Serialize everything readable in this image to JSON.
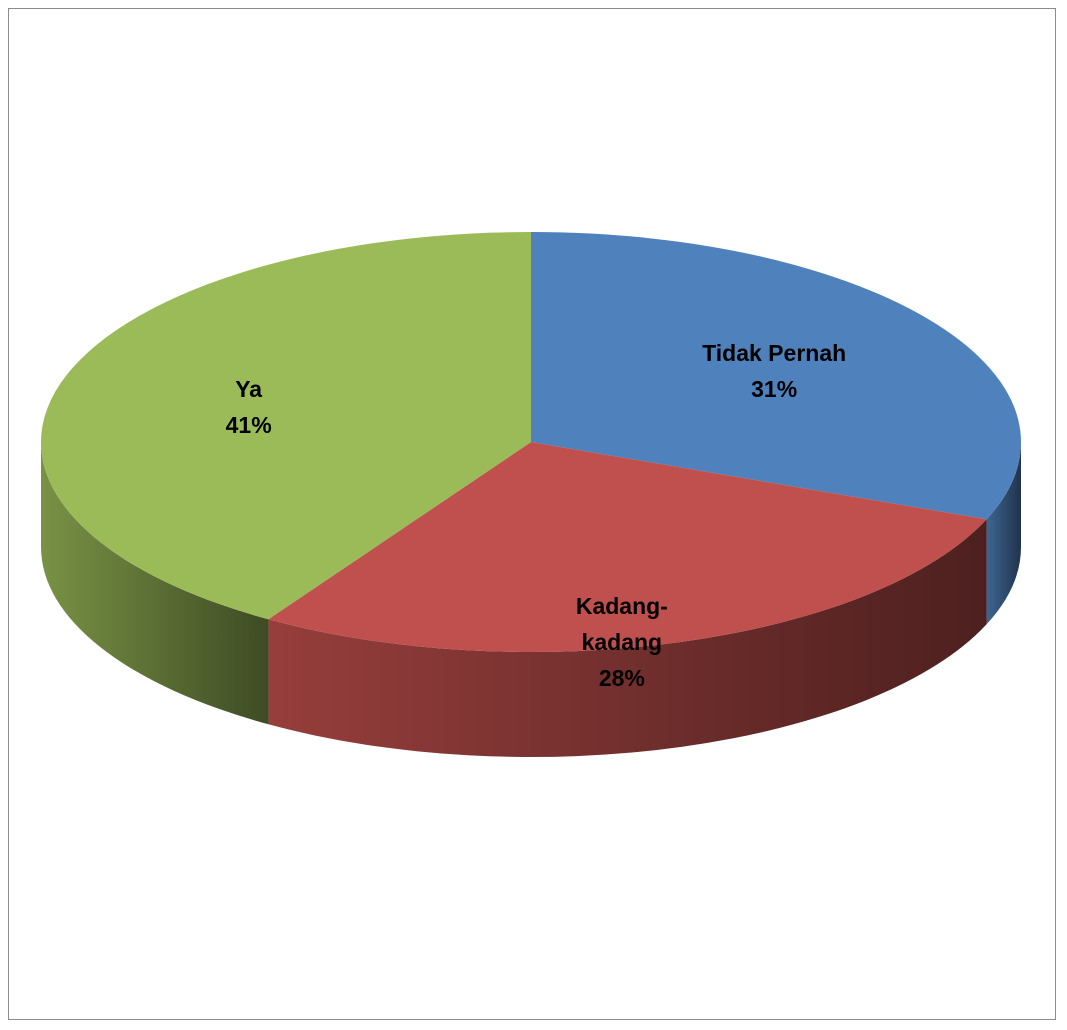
{
  "chart_data": {
    "type": "pie",
    "style": "3d",
    "slices": [
      {
        "label_lines": [
          "Tidak Pernah"
        ],
        "pct_label": "31%",
        "value": 31,
        "color": "#4f81bd"
      },
      {
        "label_lines": [
          "Kadang-",
          "kadang"
        ],
        "pct_label": "28%",
        "value": 28,
        "color": "#c0504d"
      },
      {
        "label_lines": [
          "Ya"
        ],
        "pct_label": "41%",
        "value": 41,
        "color": "#9bbb59"
      }
    ]
  }
}
